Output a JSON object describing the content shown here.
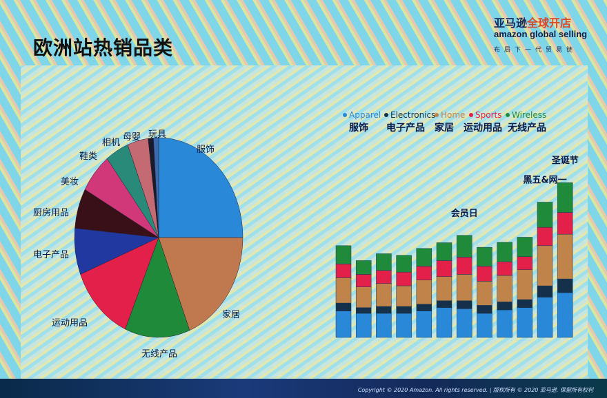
{
  "title": "欧洲站热销品类",
  "logo": {
    "cn_part1": "亚马逊",
    "cn_part2": "全球开店",
    "en": "amazon global selling",
    "tagline": "布局下一代贸易链"
  },
  "footer": {
    "copyright": "Copyright © 2020 Amazon. All rights reserved. | 版权所有 © 2020 亚马逊. 保留所有权利"
  },
  "chart_data": [
    {
      "type": "pie",
      "labels": [
        "服饰",
        "家居",
        "无线产品",
        "运动用品",
        "电子产品",
        "厨房用品",
        "美妆",
        "鞋类",
        "相机",
        "母婴",
        "玩具"
      ],
      "values": [
        25,
        19,
        12.5,
        12.5,
        7.5,
        6.5,
        6.5,
        4.5,
        4,
        1,
        1
      ],
      "colors": [
        "#2a88d8",
        "#c0784e",
        "#1f8a3a",
        "#e2204a",
        "#2038a0",
        "#3a1018",
        "#d0387a",
        "#2a8a7a",
        "#c46a72",
        "#1a1a2a",
        "#3a6ab0"
      ]
    },
    {
      "type": "bar",
      "stacked": true,
      "legend": [
        {
          "name": "Apparel",
          "cn": "服饰",
          "color": "#2a88d8"
        },
        {
          "name": "Electronics",
          "cn": "电子产品",
          "color": "#14304a"
        },
        {
          "name": "Home",
          "cn": "家居",
          "color": "#c0844a"
        },
        {
          "name": "Sports",
          "cn": "运动用品",
          "color": "#e2204a"
        },
        {
          "name": "Wireless",
          "cn": "无线产品",
          "color": "#1f8a3a"
        }
      ],
      "legend_position": "top",
      "series": [
        {
          "name": "Apparel",
          "values": [
            11.5,
            10.5,
            10.5,
            10.5,
            11.5,
            13,
            12.5,
            10.5,
            12,
            13,
            17.5,
            19.5
          ]
        },
        {
          "name": "Electronics",
          "values": [
            3.5,
            2.5,
            3,
            3,
            3,
            3,
            3.5,
            3.5,
            3.5,
            3.5,
            5,
            6
          ]
        },
        {
          "name": "Home",
          "values": [
            11,
            9,
            10,
            9,
            10.5,
            10.5,
            11.5,
            10.5,
            11.5,
            13,
            17.5,
            19.5
          ]
        },
        {
          "name": "Sports",
          "values": [
            6,
            5.5,
            5.7,
            6,
            6,
            7,
            7.5,
            6.5,
            6,
            5.7,
            8,
            9.5
          ]
        },
        {
          "name": "Wireless",
          "values": [
            8,
            6,
            7.3,
            7.3,
            7.8,
            7.8,
            9.5,
            8.3,
            8.5,
            8.5,
            11,
            13
          ]
        }
      ],
      "annotations": [
        {
          "bar": 7,
          "text": "会员日"
        },
        {
          "bar": 11,
          "text": "黑五&网一"
        },
        {
          "bar": 12,
          "text": "圣诞节"
        }
      ]
    }
  ]
}
